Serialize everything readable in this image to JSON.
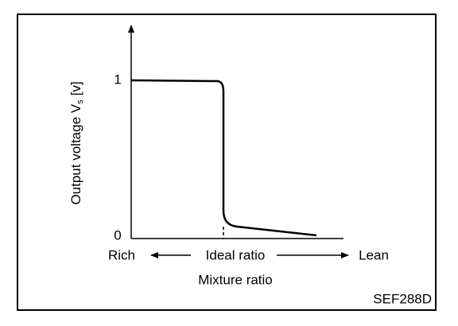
{
  "diagram": {
    "y_axis": {
      "label_main": "Output voltage V",
      "label_subscript": "s",
      "label_unit": "[v]",
      "tick_high": "1",
      "tick_low": "0"
    },
    "x_axis": {
      "left": "Rich",
      "center": "Ideal ratio",
      "right": "Lean",
      "title": "Mixture ratio"
    },
    "code": "SEF288D"
  }
}
